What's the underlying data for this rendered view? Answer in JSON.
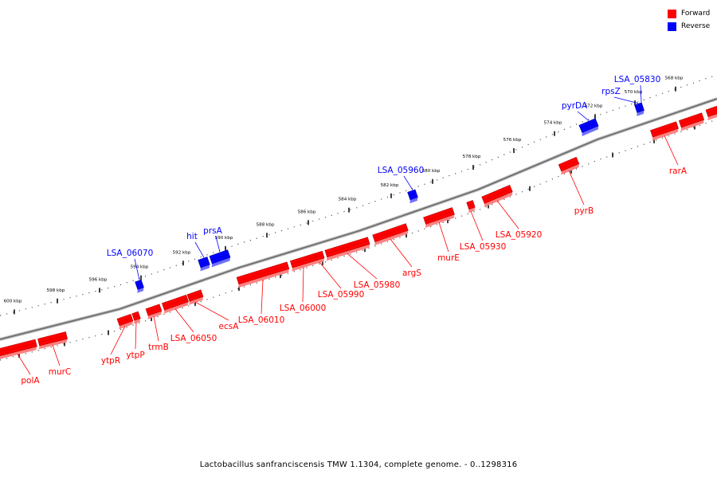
{
  "caption": "Lactobacillus sanfranciscensis TMW 1.1304, complete genome. - 0..1298316",
  "colors": {
    "forward": "#ff0000",
    "reverse": "#0000ff",
    "backbone": "#888888"
  },
  "legend": [
    {
      "label": "Forward",
      "color": "#ff0000"
    },
    {
      "label": "Reverse",
      "color": "#0000ff"
    }
  ],
  "ticks": [
    "568 kbp",
    "570 kbp",
    "572 kbp",
    "574 kbp",
    "576 kbp",
    "578 kbp",
    "580 kbp",
    "582 kbp",
    "584 kbp",
    "586 kbp",
    "588 kbp",
    "590 kbp",
    "592 kbp",
    "594 kbp",
    "596 kbp",
    "598 kbp",
    "600 kbp"
  ],
  "forward_genes": [
    "polA",
    "murC",
    "ytpR",
    "ytpP",
    "trmB",
    "LSA_06050",
    "ecsA",
    "LSA_06010",
    "LSA_06000",
    "LSA_05990",
    "LSA_05980",
    "argS",
    "murE",
    "LSA_05930",
    "LSA_05920",
    "pyrB",
    "rarA"
  ],
  "reverse_genes": [
    "LSA_06070",
    "hit",
    "prsA",
    "LSA_05960",
    "pyrDA",
    "rpsZ",
    "LSA_05830"
  ]
}
